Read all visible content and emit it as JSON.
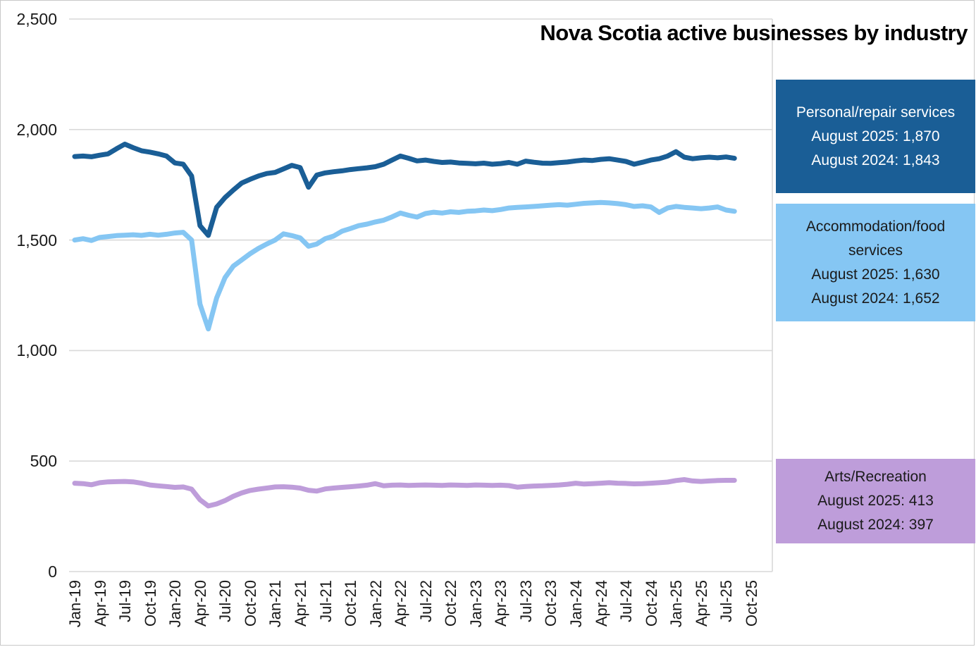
{
  "title": "Nova Scotia active businesses by industry",
  "legend": {
    "personal": {
      "title": "Personal/repair services",
      "value_2025": "August 2025: 1,870",
      "value_2024": "August 2024: 1,843",
      "bg": "#1A5E96",
      "text_color": "#FFFFFF"
    },
    "accommodation": {
      "title": "Accommodation/food services",
      "value_2025": "August 2025: 1,630",
      "value_2024": "August 2024: 1,652",
      "bg": "#85C6F3",
      "text_color": "#1A1A1A"
    },
    "arts": {
      "title": "Arts/Recreation",
      "value_2025": "August 2025: 413",
      "value_2024": "August 2024: 397",
      "bg": "#BE9DDA",
      "text_color": "#1A1A1A"
    }
  },
  "chart_data": {
    "type": "line",
    "title": "Nova Scotia active businesses by industry",
    "xlabel": "",
    "ylabel": "",
    "ylim": [
      0,
      2500
    ],
    "yticks": [
      0,
      500,
      1000,
      1500,
      2000,
      2500
    ],
    "ytick_labels": [
      "0",
      "500",
      "1,000",
      "1,500",
      "2,000",
      "2,500"
    ],
    "grid": "horizontal",
    "gridline_color": "#D9D9D9",
    "legend_position": "right",
    "x_axis_tick_labels": [
      "Jan-19",
      "Apr-19",
      "Jul-19",
      "Oct-19",
      "Jan-20",
      "Apr-20",
      "Jul-20",
      "Oct-20",
      "Jan-21",
      "Apr-21",
      "Jul-21",
      "Oct-21",
      "Jan-22",
      "Apr-22",
      "Jul-22",
      "Oct-22",
      "Jan-23",
      "Apr-23",
      "Jul-23",
      "Oct-23",
      "Jan-24",
      "Apr-24",
      "Jul-24",
      "Oct-24",
      "Jan-25",
      "Apr-25",
      "Jul-25",
      "Oct-25"
    ],
    "x": [
      "Jan-19",
      "Feb-19",
      "Mar-19",
      "Apr-19",
      "May-19",
      "Jun-19",
      "Jul-19",
      "Aug-19",
      "Sep-19",
      "Oct-19",
      "Nov-19",
      "Dec-19",
      "Jan-20",
      "Feb-20",
      "Mar-20",
      "Apr-20",
      "May-20",
      "Jun-20",
      "Jul-20",
      "Aug-20",
      "Sep-20",
      "Oct-20",
      "Nov-20",
      "Dec-20",
      "Jan-21",
      "Feb-21",
      "Mar-21",
      "Apr-21",
      "May-21",
      "Jun-21",
      "Jul-21",
      "Aug-21",
      "Sep-21",
      "Oct-21",
      "Nov-21",
      "Dec-21",
      "Jan-22",
      "Feb-22",
      "Mar-22",
      "Apr-22",
      "May-22",
      "Jun-22",
      "Jul-22",
      "Aug-22",
      "Sep-22",
      "Oct-22",
      "Nov-22",
      "Dec-22",
      "Jan-23",
      "Feb-23",
      "Mar-23",
      "Apr-23",
      "May-23",
      "Jun-23",
      "Jul-23",
      "Aug-23",
      "Sep-23",
      "Oct-23",
      "Nov-23",
      "Dec-23",
      "Jan-24",
      "Feb-24",
      "Mar-24",
      "Apr-24",
      "May-24",
      "Jun-24",
      "Jul-24",
      "Aug-24",
      "Sep-24",
      "Oct-24",
      "Nov-24",
      "Dec-24",
      "Jan-25",
      "Feb-25",
      "Mar-25",
      "Apr-25",
      "May-25",
      "Jun-25",
      "Jul-25",
      "Aug-25"
    ],
    "series": [
      {
        "name": "Personal/repair services",
        "color": "#1A5E96",
        "values": [
          1878,
          1880,
          1877,
          1884,
          1890,
          1913,
          1934,
          1918,
          1904,
          1898,
          1890,
          1880,
          1849,
          1843,
          1790,
          1565,
          1521,
          1648,
          1692,
          1726,
          1758,
          1775,
          1790,
          1801,
          1806,
          1822,
          1838,
          1828,
          1739,
          1794,
          1804,
          1809,
          1813,
          1819,
          1823,
          1827,
          1832,
          1843,
          1862,
          1880,
          1870,
          1858,
          1862,
          1856,
          1851,
          1853,
          1849,
          1847,
          1845,
          1848,
          1843,
          1846,
          1851,
          1843,
          1857,
          1852,
          1848,
          1847,
          1850,
          1853,
          1858,
          1862,
          1860,
          1865,
          1868,
          1862,
          1856,
          1843,
          1852,
          1862,
          1868,
          1880,
          1900,
          1875,
          1868,
          1872,
          1875,
          1872,
          1876,
          1870
        ]
      },
      {
        "name": "Accommodation/food services",
        "color": "#85C6F3",
        "values": [
          1500,
          1506,
          1498,
          1512,
          1516,
          1520,
          1522,
          1524,
          1521,
          1526,
          1522,
          1526,
          1532,
          1535,
          1500,
          1210,
          1098,
          1238,
          1330,
          1382,
          1410,
          1438,
          1462,
          1482,
          1500,
          1528,
          1520,
          1510,
          1472,
          1482,
          1506,
          1518,
          1540,
          1552,
          1565,
          1572,
          1582,
          1590,
          1605,
          1622,
          1612,
          1604,
          1620,
          1626,
          1622,
          1628,
          1625,
          1630,
          1632,
          1636,
          1633,
          1638,
          1645,
          1648,
          1650,
          1652,
          1655,
          1658,
          1660,
          1658,
          1662,
          1666,
          1668,
          1670,
          1668,
          1665,
          1660,
          1652,
          1655,
          1650,
          1625,
          1645,
          1652,
          1648,
          1645,
          1642,
          1645,
          1650,
          1636,
          1630
        ]
      },
      {
        "name": "Arts/Recreation",
        "color": "#BE9DDA",
        "values": [
          400,
          398,
          393,
          402,
          406,
          407,
          408,
          406,
          400,
          392,
          388,
          385,
          381,
          383,
          373,
          325,
          297,
          306,
          321,
          341,
          356,
          367,
          373,
          378,
          383,
          384,
          382,
          378,
          368,
          364,
          374,
          378,
          381,
          384,
          387,
          391,
          398,
          388,
          391,
          392,
          390,
          391,
          392,
          391,
          390,
          392,
          391,
          390,
          392,
          391,
          390,
          391,
          389,
          382,
          385,
          387,
          388,
          390,
          392,
          395,
          400,
          396,
          398,
          400,
          402,
          400,
          399,
          397,
          398,
          400,
          402,
          405,
          412,
          416,
          410,
          408,
          410,
          412,
          413,
          413
        ]
      }
    ]
  }
}
